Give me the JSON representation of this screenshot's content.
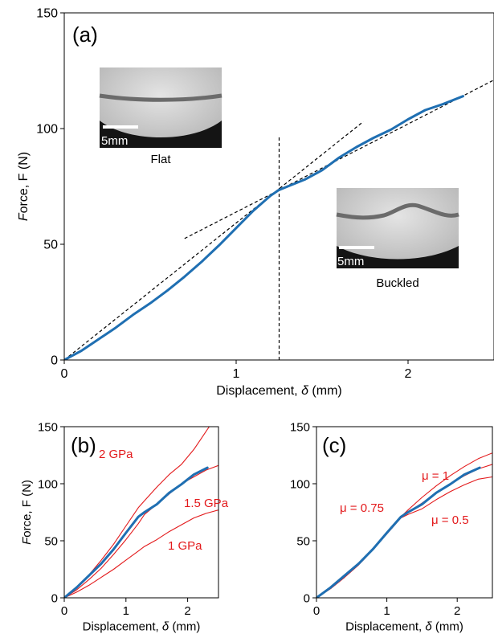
{
  "colors": {
    "data": "#1f6fb2",
    "sim": "#e31a1c",
    "axis": "#000000",
    "guide": "#000000"
  },
  "chart_data": [
    {
      "panel": "(a)",
      "type": "line",
      "xlabel": "Displacement, δ (mm)",
      "ylabel": "Force, F (N)",
      "xlim": [
        0,
        2.5
      ],
      "ylim": [
        0,
        150
      ],
      "xticks": [
        "0",
        "1",
        "2"
      ],
      "yticks": [
        "0",
        "50",
        "100",
        "150"
      ],
      "grid": false,
      "series": [
        {
          "role": "experiment",
          "x": [
            0,
            0.1,
            0.2,
            0.3,
            0.4,
            0.5,
            0.6,
            0.7,
            0.8,
            0.9,
            1.0,
            1.1,
            1.2,
            1.25,
            1.3,
            1.4,
            1.5,
            1.6,
            1.7,
            1.8,
            1.9,
            2.0,
            2.1,
            2.2,
            2.32
          ],
          "y": [
            0,
            4,
            9,
            14,
            19.5,
            24.5,
            30,
            36,
            42.5,
            49.5,
            57,
            64.5,
            71,
            73.5,
            75,
            78,
            82,
            87.5,
            92,
            96,
            99.5,
            104,
            108,
            110.5,
            114
          ]
        }
      ],
      "guides": [
        {
          "role": "initial-slope",
          "x": [
            0,
            1.74
          ],
          "y": [
            0,
            103
          ]
        },
        {
          "role": "post-buckling-slope",
          "x": [
            0.7,
            2.5
          ],
          "y": [
            52.5,
            121
          ]
        },
        {
          "role": "transition",
          "x": [
            1.25,
            1.25
          ],
          "y": [
            0,
            97
          ]
        }
      ],
      "annotations": {
        "panel_label": "(a)",
        "inset_flat_label": "Flat",
        "inset_buckled_label": "Buckled",
        "scale_bar": "5mm"
      }
    },
    {
      "panel": "(b)",
      "type": "line",
      "xlabel": "Displacement, δ (mm)",
      "ylabel": "Force, F (N)",
      "xlim": [
        0,
        2.5
      ],
      "ylim": [
        0,
        150
      ],
      "xticks": [
        "0",
        "1",
        "2"
      ],
      "yticks": [
        "0",
        "50",
        "100",
        "150"
      ],
      "grid": false,
      "series": [
        {
          "name": "2 GPa",
          "role": "simulation",
          "x": [
            0,
            0.2,
            0.4,
            0.6,
            0.8,
            1.0,
            1.2,
            1.3,
            1.5,
            1.7,
            1.9,
            2.1,
            2.25,
            2.35
          ],
          "y": [
            0,
            9,
            20,
            33,
            47,
            63,
            79,
            85,
            97,
            108,
            117,
            130,
            142,
            150
          ]
        },
        {
          "name": "1.5 GPa",
          "role": "simulation",
          "x": [
            0,
            0.2,
            0.4,
            0.6,
            0.8,
            1.0,
            1.2,
            1.3,
            1.5,
            1.7,
            1.9,
            2.1,
            2.3,
            2.5
          ],
          "y": [
            0,
            7,
            16,
            26,
            38,
            51,
            65,
            73,
            82,
            91,
            100,
            106,
            112,
            116
          ]
        },
        {
          "name": "1 GPa",
          "role": "simulation",
          "x": [
            0,
            0.2,
            0.4,
            0.6,
            0.8,
            1.0,
            1.2,
            1.3,
            1.5,
            1.7,
            1.9,
            2.1,
            2.3,
            2.5
          ],
          "y": [
            0,
            5,
            11,
            18,
            25,
            33,
            41,
            45,
            51,
            58,
            64,
            70,
            74,
            77
          ]
        },
        {
          "role": "experiment",
          "x": [
            0,
            0.2,
            0.4,
            0.6,
            0.8,
            1.0,
            1.2,
            1.3,
            1.5,
            1.7,
            1.9,
            2.1,
            2.32
          ],
          "y": [
            0,
            9,
            19.5,
            30,
            42.5,
            57,
            71,
            75,
            82,
            92,
            99.5,
            108,
            114
          ]
        }
      ],
      "annotations": {
        "panel_label": "(b)"
      }
    },
    {
      "panel": "(c)",
      "type": "line",
      "xlabel": "Displacement, δ (mm)",
      "ylabel": "",
      "xlim": [
        0,
        2.5
      ],
      "ylim": [
        0,
        150
      ],
      "xticks": [
        "0",
        "1",
        "2"
      ],
      "yticks": [
        "0",
        "50",
        "100",
        "150"
      ],
      "grid": false,
      "series": [
        {
          "name": "μ = 1",
          "role": "simulation",
          "x": [
            0,
            0.2,
            0.4,
            0.6,
            0.8,
            1.0,
            1.2,
            1.3,
            1.5,
            1.7,
            1.9,
            2.1,
            2.3,
            2.5
          ],
          "y": [
            0,
            8,
            18,
            29,
            42,
            57,
            71,
            77,
            88,
            98,
            107,
            115,
            122,
            127
          ]
        },
        {
          "name": "μ = 0.75",
          "role": "simulation",
          "x": [
            0,
            0.2,
            0.4,
            0.6,
            0.8,
            1.0,
            1.2,
            1.3,
            1.5,
            1.7,
            1.9,
            2.1,
            2.3,
            2.5
          ],
          "y": [
            0,
            8,
            18,
            29,
            42,
            57,
            71,
            75,
            83,
            92,
            100,
            107,
            113,
            117
          ]
        },
        {
          "name": "μ = 0.5",
          "role": "simulation",
          "x": [
            0,
            0.2,
            0.4,
            0.6,
            0.8,
            1.0,
            1.2,
            1.3,
            1.5,
            1.7,
            1.9,
            2.1,
            2.3,
            2.5
          ],
          "y": [
            0,
            8,
            18,
            29,
            42,
            56,
            70,
            73,
            78,
            86,
            93,
            99,
            104,
            106
          ]
        },
        {
          "role": "experiment",
          "x": [
            0,
            0.2,
            0.4,
            0.6,
            0.8,
            1.0,
            1.2,
            1.3,
            1.5,
            1.7,
            1.9,
            2.1,
            2.32
          ],
          "y": [
            0,
            9,
            19.5,
            30,
            42.5,
            57,
            71,
            75,
            82,
            92,
            99.5,
            108,
            114
          ]
        }
      ],
      "annotations": {
        "panel_label": "(c)"
      }
    }
  ]
}
